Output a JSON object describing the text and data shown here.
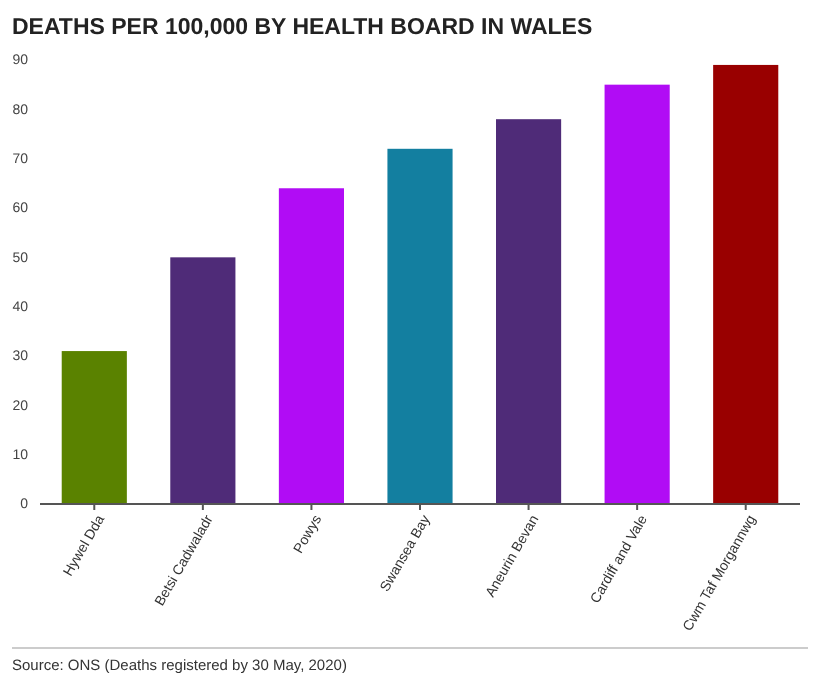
{
  "chart_data": {
    "type": "bar",
    "title": "DEATHS PER 100,000 BY HEALTH BOARD IN WALES",
    "categories": [
      "Hywel Dda",
      "Betsi Cadwaladr",
      "Powys",
      "Swansea Bay",
      "Aneurin Bevan",
      "Cardiff and Vale",
      "Cwm Taf Morgannwg"
    ],
    "values": [
      31,
      50,
      64,
      72,
      78,
      85,
      89
    ],
    "colors": [
      "#5a8200",
      "#4f2b78",
      "#b10cf5",
      "#137fa0",
      "#4f2b78",
      "#b10cf5",
      "#990000"
    ],
    "ylim": [
      0,
      90
    ],
    "yticks": [
      0,
      10,
      20,
      30,
      40,
      50,
      60,
      70,
      80,
      90
    ],
    "grid": false,
    "annotations": [
      "Source: ONS (Deaths registered by 30 May, 2020)"
    ]
  }
}
